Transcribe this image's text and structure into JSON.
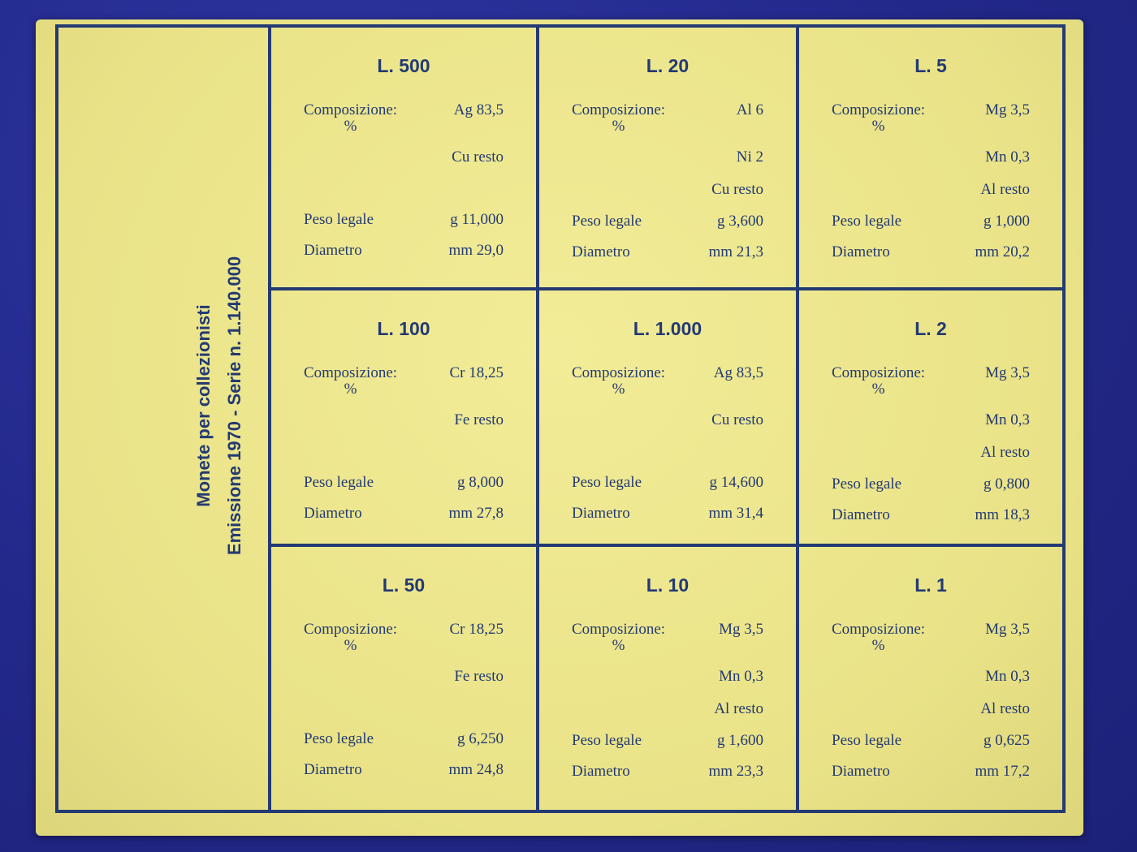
{
  "side": {
    "line1": "Monete per collezionisti",
    "line2": "Emissione 1970 - Serie n. 1.140.000"
  },
  "labels": {
    "composizione": "Composizione:",
    "percent": "%",
    "peso": "Peso  legale",
    "diametro": "Diametro"
  },
  "coins": [
    {
      "title": "L. 500",
      "comp_first": "Ag  83,5",
      "comp_rest": [
        "Cu  resto"
      ],
      "peso": "g  11,000",
      "diametro": "mm  29,0"
    },
    {
      "title": "L. 20",
      "comp_first": "Al  6",
      "comp_rest": [
        "Ni  2",
        "Cu  resto"
      ],
      "peso": "g  3,600",
      "diametro": "mm  21,3"
    },
    {
      "title": "L. 5",
      "comp_first": "Mg  3,5",
      "comp_rest": [
        "Mn  0,3",
        "Al  resto"
      ],
      "peso": "g  1,000",
      "diametro": "mm  20,2"
    },
    {
      "title": "L. 100",
      "comp_first": "Cr  18,25",
      "comp_rest": [
        "Fe  resto"
      ],
      "peso": "g  8,000",
      "diametro": "mm  27,8"
    },
    {
      "title": "L. 1.000",
      "comp_first": "Ag  83,5",
      "comp_rest": [
        "Cu  resto"
      ],
      "peso": "g  14,600",
      "diametro": "mm  31,4"
    },
    {
      "title": "L. 2",
      "comp_first": "Mg  3,5",
      "comp_rest": [
        "Mn  0,3",
        "Al  resto"
      ],
      "peso": "g  0,800",
      "diametro": "mm  18,3"
    },
    {
      "title": "L. 50",
      "comp_first": "Cr  18,25",
      "comp_rest": [
        "Fe  resto"
      ],
      "peso": "g  6,250",
      "diametro": "mm  24,8"
    },
    {
      "title": "L. 10",
      "comp_first": "Mg  3,5",
      "comp_rest": [
        "Mn  0,3",
        "Al  resto"
      ],
      "peso": "g  1,600",
      "diametro": "mm  23,3"
    },
    {
      "title": "L. 1",
      "comp_first": "Mg  3,5",
      "comp_rest": [
        "Mn  0,3",
        "Al  resto"
      ],
      "peso": "g  0,625",
      "diametro": "mm  17,2"
    }
  ]
}
